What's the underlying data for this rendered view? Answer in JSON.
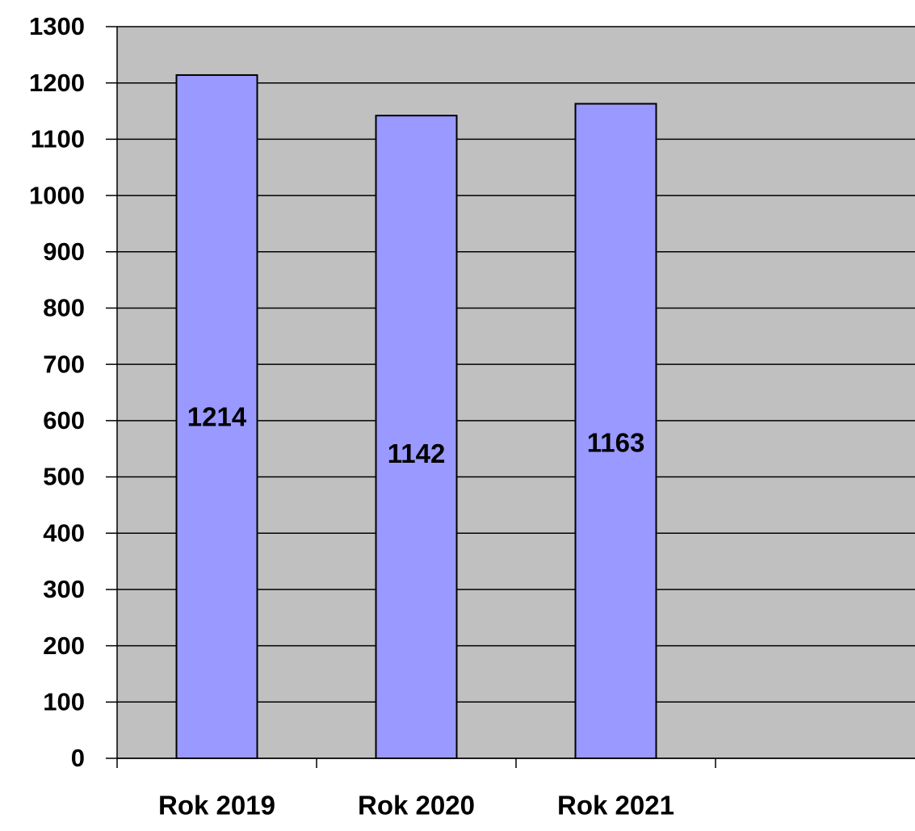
{
  "chart_data": {
    "type": "bar",
    "categories": [
      "Rok 2019",
      "Rok 2020",
      "Rok 2021",
      null
    ],
    "values": [
      1214,
      1142,
      1163,
      null
    ],
    "color": "#9999ff",
    "plot_background": "#c0c0c0",
    "grid_color": "#000000",
    "ylim": [
      0,
      1300
    ],
    "yticks": [
      0,
      100,
      200,
      300,
      400,
      500,
      600,
      700,
      800,
      900,
      1000,
      1100,
      1200,
      1300
    ],
    "grid": true,
    "data_labels": true
  }
}
